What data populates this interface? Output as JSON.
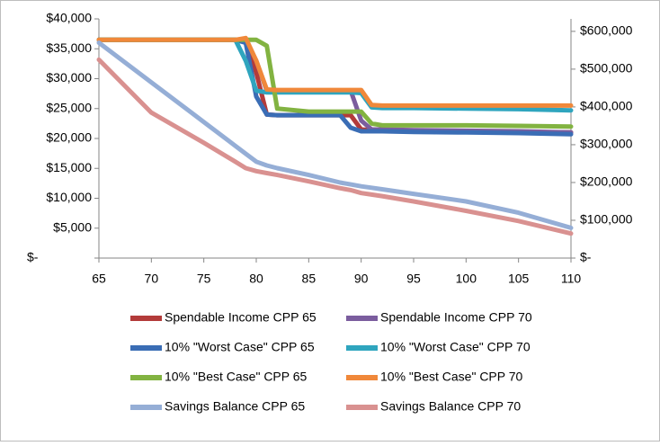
{
  "chart_data": {
    "type": "line",
    "x": [
      65,
      70,
      75,
      78,
      79,
      80,
      81,
      82,
      85,
      88,
      89,
      90,
      91,
      92,
      95,
      100,
      105,
      110
    ],
    "xlim": [
      65,
      110
    ],
    "xticks": [
      65,
      70,
      75,
      80,
      85,
      90,
      95,
      100,
      105,
      110
    ],
    "ylim": [
      0,
      40000
    ],
    "yticks": [
      {
        "value": 0,
        "label": "$-"
      },
      {
        "value": 5000,
        "label": "$5,000"
      },
      {
        "value": 10000,
        "label": "$10,000"
      },
      {
        "value": 15000,
        "label": "$15,000"
      },
      {
        "value": 20000,
        "label": "$20,000"
      },
      {
        "value": 25000,
        "label": "$25,000"
      },
      {
        "value": 30000,
        "label": "$30,000"
      },
      {
        "value": 35000,
        "label": "$35,000"
      },
      {
        "value": 40000,
        "label": "$40,000"
      }
    ],
    "y2lim": [
      0,
      633000
    ],
    "y2ticks": [
      {
        "value": 0,
        "label": "$-"
      },
      {
        "value": 100000,
        "label": "$100,000"
      },
      {
        "value": 200000,
        "label": "$200,000"
      },
      {
        "value": 300000,
        "label": "$300,000"
      },
      {
        "value": 400000,
        "label": "$400,000"
      },
      {
        "value": 500000,
        "label": "$500,000"
      },
      {
        "value": 600000,
        "label": "$600,000"
      }
    ],
    "grid": false,
    "legend": "bottom",
    "series": [
      {
        "name": "Spendable Income CPP 65",
        "color": "#b33b3a",
        "values": [
          36500,
          36500,
          36500,
          36500,
          36500,
          31000,
          24000,
          23900,
          23900,
          23900,
          23900,
          21500,
          21400,
          21400,
          21300,
          21200,
          21100,
          21000
        ]
      },
      {
        "name": "Spendable Income CPP 70",
        "color": "#7b5d9e",
        "values": [
          36500,
          36500,
          36500,
          36500,
          36500,
          33000,
          28000,
          28000,
          28000,
          28000,
          28000,
          23000,
          21500,
          21500,
          21400,
          21300,
          21200,
          21000
        ]
      },
      {
        "name": "10% \"Worst Case\" CPP 65",
        "color": "#3a6db5",
        "values": [
          36500,
          36500,
          36500,
          36500,
          36000,
          27000,
          24000,
          23900,
          23900,
          23900,
          21800,
          21200,
          21200,
          21200,
          21100,
          21000,
          20900,
          20700
        ]
      },
      {
        "name": "10% \"Worst Case\" CPP 70",
        "color": "#2fa5be",
        "values": [
          36500,
          36500,
          36500,
          36500,
          33000,
          28000,
          27700,
          27700,
          27700,
          27700,
          27700,
          27600,
          25200,
          25100,
          25100,
          25000,
          24900,
          24700
        ]
      },
      {
        "name": "10% \"Best Case\" CPP 65",
        "color": "#82b341",
        "values": [
          36500,
          36500,
          36500,
          36500,
          36500,
          36500,
          35500,
          25000,
          24500,
          24500,
          24500,
          24500,
          22500,
          22200,
          22200,
          22200,
          22100,
          22000
        ]
      },
      {
        "name": "10% \"Best Case\" CPP 70",
        "color": "#f0883a",
        "values": [
          36500,
          36500,
          36500,
          36500,
          36800,
          33000,
          28200,
          28100,
          28100,
          28100,
          28100,
          28100,
          25600,
          25500,
          25500,
          25500,
          25500,
          25500
        ]
      },
      {
        "name": "Savings Balance CPP 65",
        "color": "#95aed6",
        "axis": "y2",
        "values": [
          570000,
          465000,
          360000,
          297000,
          276000,
          255000,
          245000,
          238000,
          220000,
          200000,
          195000,
          190000,
          186000,
          182000,
          170000,
          150000,
          120000,
          80000
        ]
      },
      {
        "name": "Savings Balance CPP 70",
        "color": "#d99190",
        "axis": "y2",
        "values": [
          525000,
          385000,
          305000,
          255000,
          238000,
          230000,
          225000,
          220000,
          203000,
          185000,
          180000,
          172000,
          168000,
          164000,
          150000,
          125000,
          98000,
          65000
        ]
      }
    ]
  }
}
